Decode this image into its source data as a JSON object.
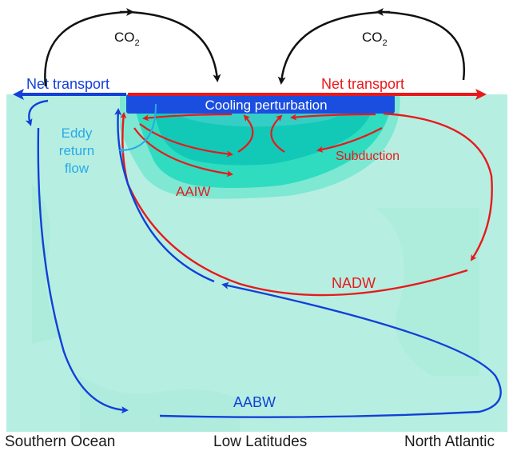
{
  "labels": {
    "co2_left": "CO",
    "co2_left_sub": "2",
    "co2_right": "CO",
    "co2_right_sub": "2",
    "net_transport_left": "Net transport",
    "net_transport_right": "Net transport",
    "cooling_perturbation": "Cooling perturbation",
    "eddy_line1": "Eddy",
    "eddy_line2": "return",
    "eddy_line3": "flow",
    "subduction": "Subduction",
    "aaiw": "AAIW",
    "nadw": "NADW",
    "aabw": "AABW"
  },
  "regions": {
    "southern_ocean": "Southern Ocean",
    "low_latitudes": "Low Latitudes",
    "north_atlantic": "North Atlantic"
  },
  "colors": {
    "ocean": "#b6efe2",
    "perturbation_light": "#7ee8d3",
    "perturbation_mid": "#2fdcc0",
    "perturbation_dark": "#12c9b8",
    "cooling_blue": "#1a4ee0",
    "red": "#e8191b",
    "blue": "#1240d8",
    "cyan": "#29a9e6",
    "black": "#111111"
  }
}
